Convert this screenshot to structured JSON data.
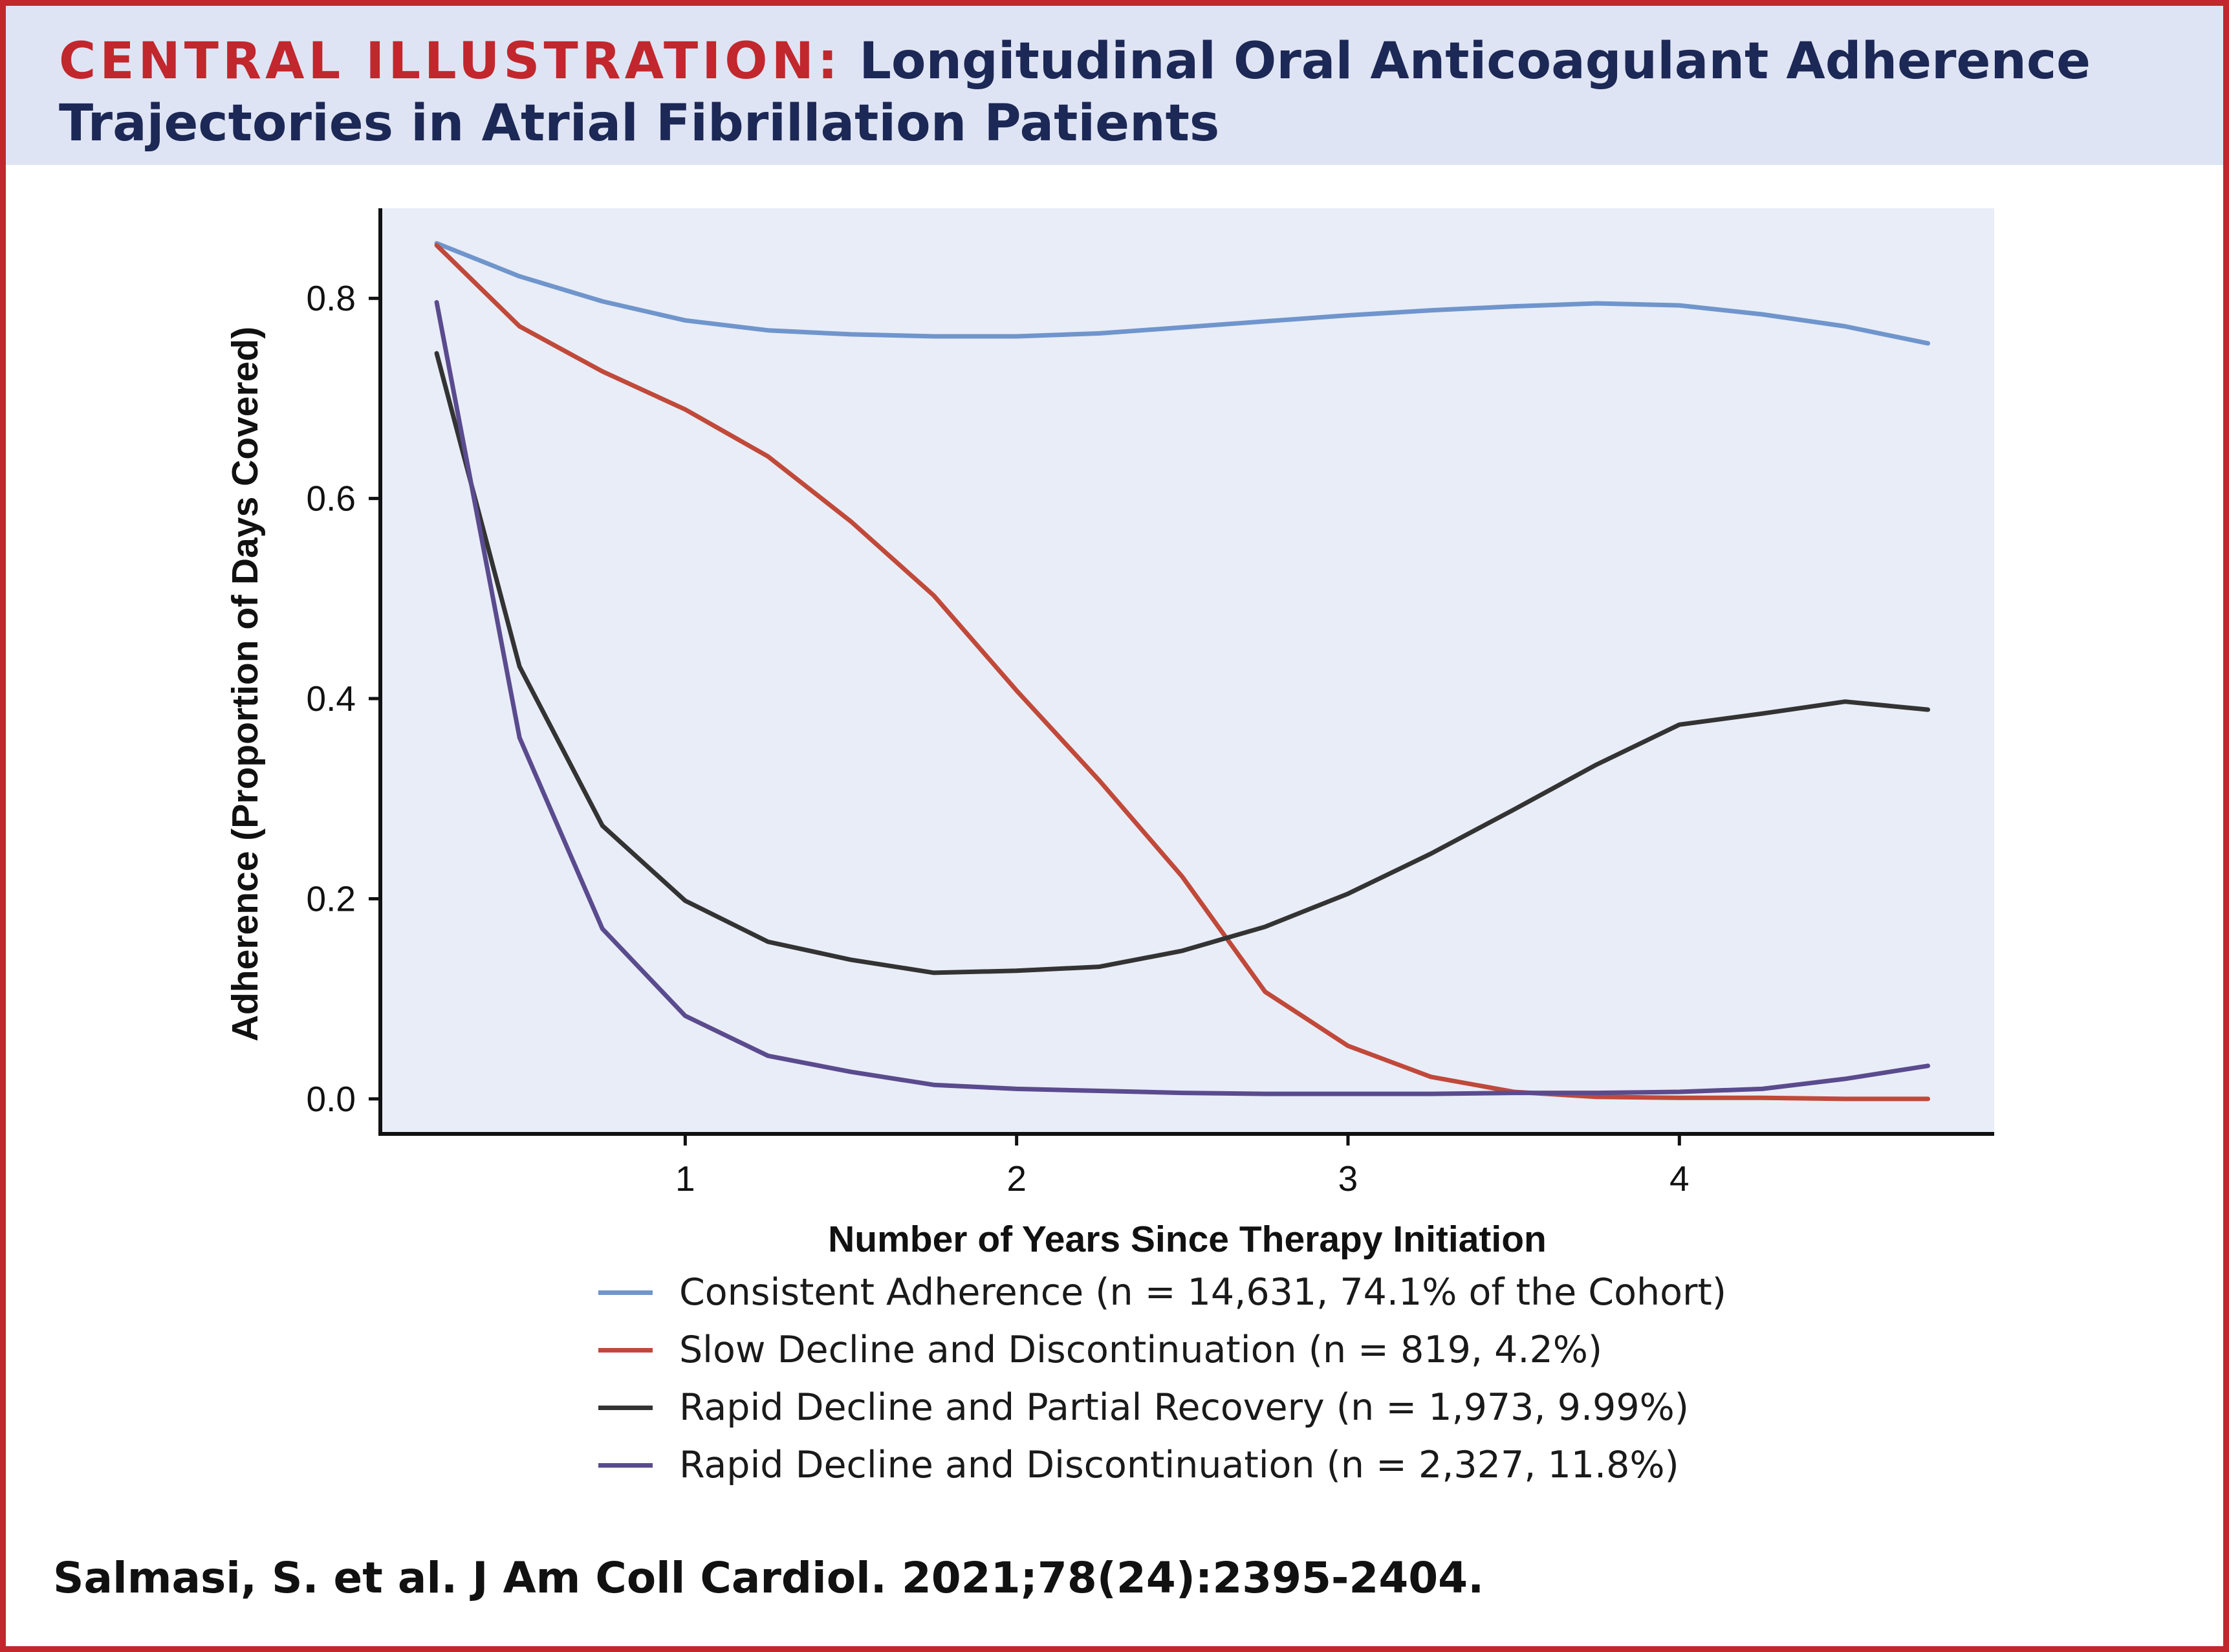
{
  "header": {
    "title_lead": "CENTRAL ILLUSTRATION:",
    "title_rest": "Longitudinal Oral Anticoagulant Adherence Trajectories in Atrial Fibrillation Patients"
  },
  "citation": "Salmasi, S. et al. J Am Coll Cardiol. 2021;78(24):2395-2404.",
  "colors": {
    "accent_red": "#c1272d",
    "title_navy": "#1c2855",
    "header_bg": "#dfe4f4",
    "plot_bg": "#e9edf7"
  },
  "chart_data": {
    "type": "line",
    "title": "",
    "xlabel": "Number of Years Since Therapy Initiation",
    "ylabel": "Adherence (Proportion of Days Covered)",
    "xlim": [
      0.08,
      4.95
    ],
    "ylim": [
      -0.035,
      0.89
    ],
    "xticks": [
      1,
      2,
      3,
      4
    ],
    "yticks": [
      0.0,
      0.2,
      0.4,
      0.6,
      0.8
    ],
    "xtick_labels": [
      "1",
      "2",
      "3",
      "4"
    ],
    "ytick_labels": [
      "0.0",
      "0.2",
      "0.4",
      "0.6",
      "0.8"
    ],
    "grid": false,
    "legend_position": "bottom",
    "series": [
      {
        "name": "Consistent Adherence (n = 14,631, 74.1% of the Cohort)",
        "color": "#6f95cc",
        "points": [
          [
            0.25,
            0.855
          ],
          [
            0.5,
            0.822
          ],
          [
            0.75,
            0.797
          ],
          [
            1.0,
            0.778
          ],
          [
            1.25,
            0.768
          ],
          [
            1.5,
            0.764
          ],
          [
            1.75,
            0.762
          ],
          [
            2.0,
            0.762
          ],
          [
            2.25,
            0.765
          ],
          [
            2.5,
            0.771
          ],
          [
            2.75,
            0.777
          ],
          [
            3.0,
            0.783
          ],
          [
            3.25,
            0.788
          ],
          [
            3.5,
            0.792
          ],
          [
            3.75,
            0.795
          ],
          [
            4.0,
            0.793
          ],
          [
            4.25,
            0.784
          ],
          [
            4.5,
            0.772
          ],
          [
            4.75,
            0.755
          ]
        ]
      },
      {
        "name": "Slow Decline and Discontinuation (n = 819, 4.2%)",
        "color": "#c0493a",
        "points": [
          [
            0.25,
            0.853
          ],
          [
            0.5,
            0.772
          ],
          [
            0.75,
            0.727
          ],
          [
            1.0,
            0.689
          ],
          [
            1.25,
            0.642
          ],
          [
            1.5,
            0.577
          ],
          [
            1.75,
            0.503
          ],
          [
            2.0,
            0.408
          ],
          [
            2.25,
            0.318
          ],
          [
            2.5,
            0.222
          ],
          [
            2.75,
            0.107
          ],
          [
            3.0,
            0.053
          ],
          [
            3.25,
            0.022
          ],
          [
            3.5,
            0.007
          ],
          [
            3.75,
            0.002
          ],
          [
            4.0,
            0.001
          ],
          [
            4.25,
            0.001
          ],
          [
            4.5,
            0.0
          ],
          [
            4.75,
            0.0
          ]
        ]
      },
      {
        "name": "Rapid Decline and Partial Recovery (n = 1,973, 9.99%)",
        "color": "#333333",
        "points": [
          [
            0.25,
            0.745
          ],
          [
            0.5,
            0.432
          ],
          [
            0.75,
            0.273
          ],
          [
            1.0,
            0.198
          ],
          [
            1.25,
            0.157
          ],
          [
            1.5,
            0.139
          ],
          [
            1.75,
            0.126
          ],
          [
            2.0,
            0.128
          ],
          [
            2.25,
            0.132
          ],
          [
            2.5,
            0.148
          ],
          [
            2.75,
            0.172
          ],
          [
            3.0,
            0.205
          ],
          [
            3.25,
            0.245
          ],
          [
            3.5,
            0.289
          ],
          [
            3.75,
            0.334
          ],
          [
            4.0,
            0.374
          ],
          [
            4.25,
            0.385
          ],
          [
            4.5,
            0.397
          ],
          [
            4.75,
            0.389
          ]
        ]
      },
      {
        "name": "Rapid Decline and Discontinuation (n = 2,327, 11.8%)",
        "color": "#5a4b8e",
        "points": [
          [
            0.25,
            0.796
          ],
          [
            0.5,
            0.361
          ],
          [
            0.75,
            0.17
          ],
          [
            1.0,
            0.083
          ],
          [
            1.25,
            0.043
          ],
          [
            1.5,
            0.027
          ],
          [
            1.75,
            0.014
          ],
          [
            2.0,
            0.01
          ],
          [
            2.25,
            0.008
          ],
          [
            2.5,
            0.006
          ],
          [
            2.75,
            0.005
          ],
          [
            3.0,
            0.005
          ],
          [
            3.25,
            0.005
          ],
          [
            3.5,
            0.006
          ],
          [
            3.75,
            0.006
          ],
          [
            4.0,
            0.007
          ],
          [
            4.25,
            0.01
          ],
          [
            4.5,
            0.02
          ],
          [
            4.75,
            0.033
          ]
        ]
      }
    ]
  }
}
